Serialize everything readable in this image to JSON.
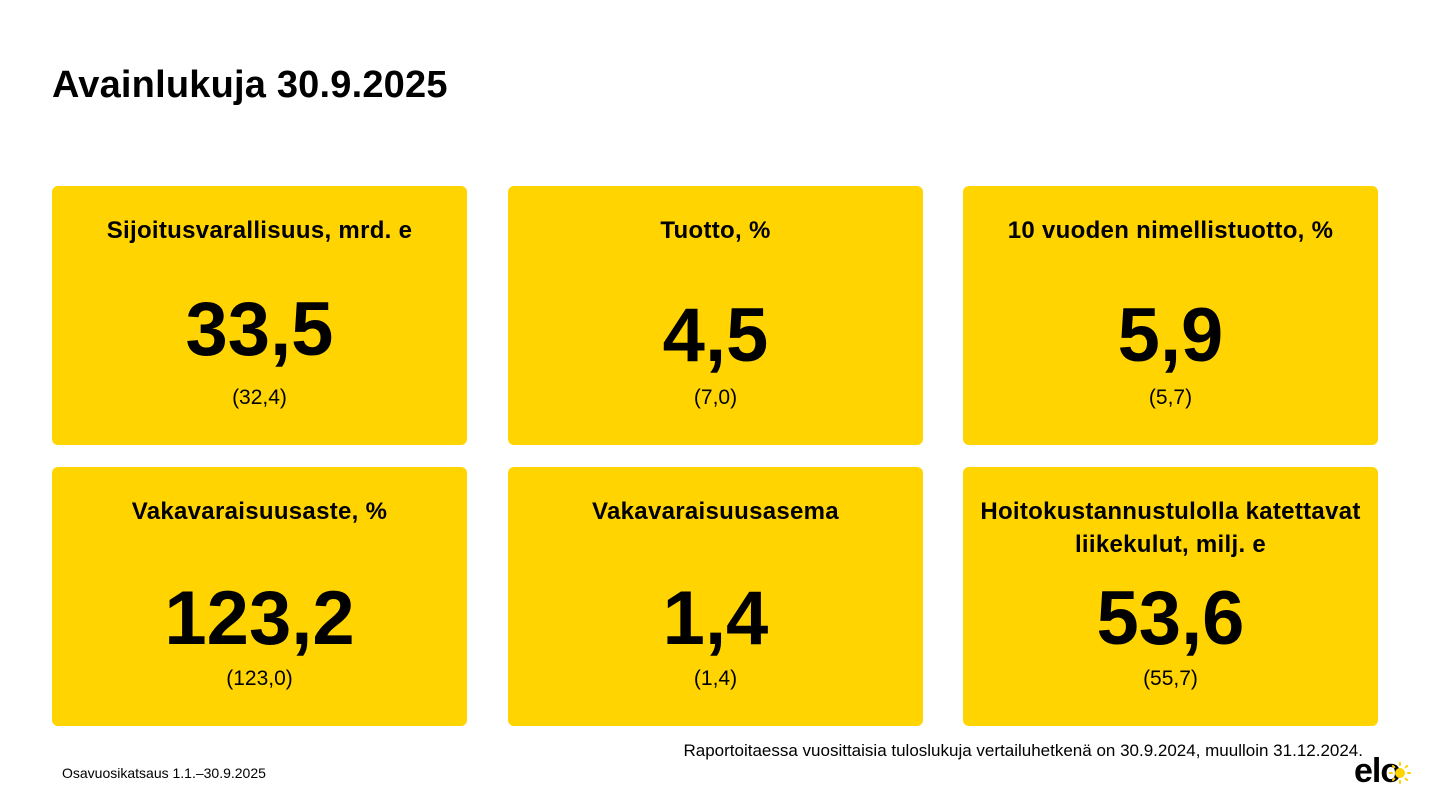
{
  "title": "Avainlukuja 30.9.2025",
  "accent_color": "#FFD400",
  "cards": [
    {
      "label": "Sijoitusvarallisuus, mrd. e",
      "value": "33,5",
      "previous": "(32,4)"
    },
    {
      "label": "Tuotto, %",
      "value": "4,5",
      "previous": "(7,0)"
    },
    {
      "label": "10 vuoden nimellistuotto, %",
      "value": "5,9",
      "previous": "(5,7)"
    },
    {
      "label": "Vakavaraisuusaste, %",
      "value": "123,2",
      "previous": "(123,0)"
    },
    {
      "label": "Vakavaraisuusasema",
      "value": "1,4",
      "previous": "(1,4)"
    },
    {
      "label": "Hoitokustannustulolla katettavat liikekulut, milj. e",
      "value": "53,6",
      "previous": "(55,7)"
    }
  ],
  "footer": {
    "note": "Raportoitaessa vuosittaisia tuloslukuja vertailuhetkenä on 30.9.2024, muulloin 31.12.2024.",
    "report_name": "Osavuosikatsaus 1.1.–30.9.2025"
  },
  "logo": {
    "text": "elo",
    "icon": "sun-icon"
  }
}
